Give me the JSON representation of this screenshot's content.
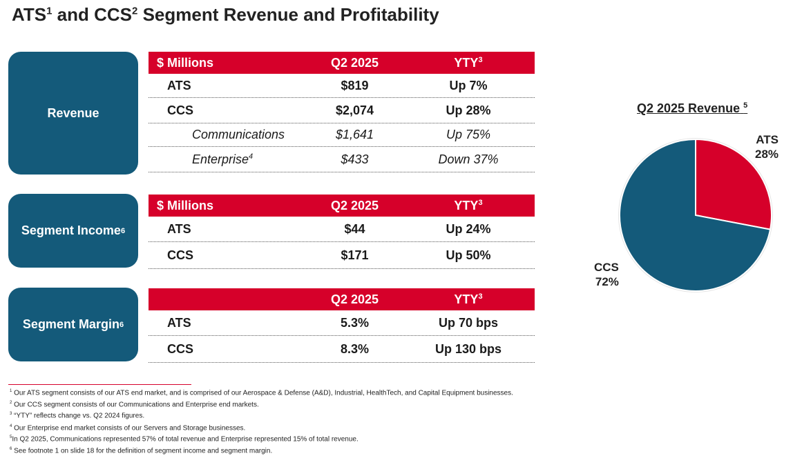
{
  "title": {
    "part1": "ATS",
    "sup1": "1",
    "part2": " and CCS",
    "sup2": "2",
    "part3": " Segment Revenue and Profitability"
  },
  "revenue": {
    "label": "Revenue",
    "header": {
      "col1": "$ Millions",
      "col2": "Q2 2025",
      "col3": "YTY",
      "col3_sup": "3"
    },
    "rows": [
      {
        "name": "ATS",
        "q2": "$819",
        "yty": "Up 7%"
      },
      {
        "name": "CCS",
        "q2": "$2,074",
        "yty": "Up 28%"
      },
      {
        "name": "Communications",
        "q2": "$1,641",
        "yty": "Up 75%"
      },
      {
        "name": "Enterprise",
        "sup": "4",
        "q2": "$433",
        "yty": "Down 37%"
      }
    ]
  },
  "segment_income": {
    "label": "Segment Income",
    "label_sup": "6",
    "header": {
      "col1": "$ Millions",
      "col2": "Q2 2025",
      "col3": "YTY",
      "col3_sup": "3"
    },
    "rows": [
      {
        "name": "ATS",
        "q2": "$44",
        "yty": "Up 24%"
      },
      {
        "name": "CCS",
        "q2": "$171",
        "yty": "Up 50%"
      }
    ]
  },
  "segment_margin": {
    "label": "Segment Margin",
    "label_sup": "6",
    "header": {
      "col1": "",
      "col2": "Q2 2025",
      "col3": "YTY",
      "col3_sup": "3"
    },
    "rows": [
      {
        "name": "ATS",
        "q2": "5.3%",
        "yty": "Up 70 bps"
      },
      {
        "name": "CCS",
        "q2": "8.3%",
        "yty": "Up 130 bps"
      }
    ]
  },
  "pie": {
    "title": "Q2 2025 Revenue",
    "title_sup": "5",
    "ats_name": "ATS",
    "ats_pct": "28%",
    "ccs_name": "CCS",
    "ccs_pct": "72%"
  },
  "chart_data": {
    "type": "pie",
    "title": "Q2 2025 Revenue",
    "categories": [
      "ATS",
      "CCS"
    ],
    "values": [
      28,
      72
    ],
    "colors": [
      "#d6002a",
      "#145a7a"
    ]
  },
  "footnotes": [
    {
      "num": "1",
      "text": "Our ATS segment consists of our ATS end market, and is comprised of our Aerospace & Defense (A&D), Industrial, HealthTech, and Capital Equipment businesses."
    },
    {
      "num": "2",
      "text": "Our CCS segment consists of our Communications and Enterprise end markets."
    },
    {
      "num": "3",
      "text": "“YTY” reflects change vs. Q2 2024 figures."
    },
    {
      "num": "4",
      "text": "Our Enterprise end market consists of our Servers and Storage businesses."
    },
    {
      "num": "5",
      "text": "In Q2 2025, Communications represented 57% of total revenue and Enterprise represented 15% of total revenue."
    },
    {
      "num": "6",
      "text": "See footnote 1 on slide 18 for the definition of segment income and segment margin."
    }
  ],
  "colors": {
    "accent_red": "#d6002a",
    "navy": "#145a7a"
  }
}
